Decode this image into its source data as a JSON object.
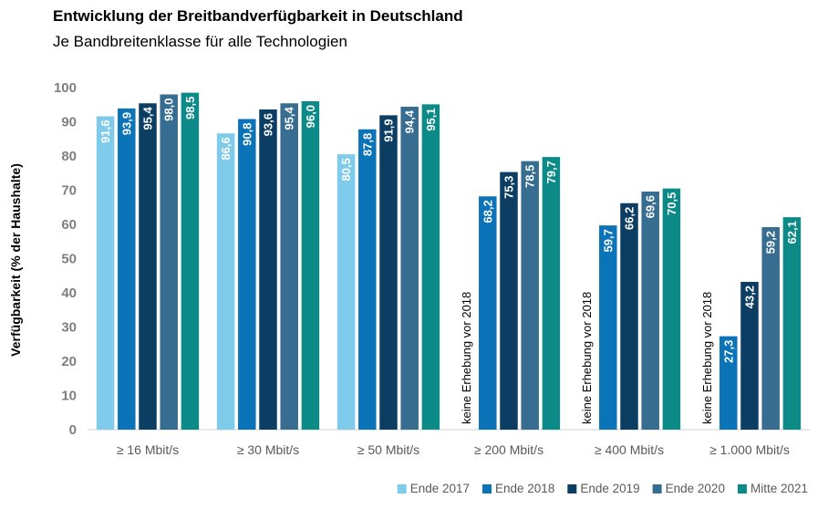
{
  "chart_data": {
    "type": "bar",
    "title": "Entwicklung der Breitbandverfügbarkeit in Deutschland",
    "subtitle": "Je Bandbreitenklasse für alle Technologien",
    "ylabel": "Verfügbarkeit (% der Haushalte)",
    "xlabel": "",
    "ylim": [
      0,
      100
    ],
    "yticks": [
      0,
      10,
      20,
      30,
      40,
      50,
      60,
      70,
      80,
      90,
      100
    ],
    "grid": false,
    "legend_position": "bottom-right",
    "categories": [
      "≥ 16 Mbit/s",
      "≥ 30 Mbit/s",
      "≥ 50 Mbit/s",
      "≥ 200 Mbit/s",
      "≥ 400 Mbit/s",
      "≥ 1.000 Mbit/s"
    ],
    "series": [
      {
        "name": "Ende 2017",
        "color": "#7fcbec",
        "values": [
          91.6,
          86.6,
          80.5,
          null,
          null,
          null
        ],
        "labels": [
          "91,6",
          "86,6",
          "80,5",
          "",
          "",
          ""
        ]
      },
      {
        "name": "Ende 2018",
        "color": "#0b73b8",
        "values": [
          93.9,
          90.8,
          87.8,
          68.2,
          59.7,
          27.3
        ],
        "labels": [
          "93,9",
          "90,8",
          "87,8",
          "68,2",
          "59,7",
          "27,3"
        ]
      },
      {
        "name": "Ende 2019",
        "color": "#0c3e63",
        "values": [
          95.4,
          93.6,
          91.9,
          75.3,
          66.2,
          43.2
        ],
        "labels": [
          "95,4",
          "93,6",
          "91,9",
          "75,3",
          "66,2",
          "43,2"
        ]
      },
      {
        "name": "Ende 2020",
        "color": "#366d90",
        "values": [
          98.0,
          95.4,
          94.4,
          78.5,
          69.6,
          59.2
        ],
        "labels": [
          "98,0",
          "95,4",
          "94,4",
          "78,5",
          "69,6",
          "59,2"
        ]
      },
      {
        "name": "Mitte 2021",
        "color": "#0b8a88",
        "values": [
          98.5,
          96.0,
          95.1,
          79.7,
          70.5,
          62.1
        ],
        "labels": [
          "98,5",
          "96,0",
          "95,1",
          "79,7",
          "70,5",
          "62,1"
        ]
      }
    ],
    "annotations": [
      {
        "category_index": 3,
        "text": "keine Erhebung vor 2018"
      },
      {
        "category_index": 4,
        "text": "keine Erhebung vor 2018"
      },
      {
        "category_index": 5,
        "text": "keine Erhebung vor 2018"
      }
    ]
  }
}
